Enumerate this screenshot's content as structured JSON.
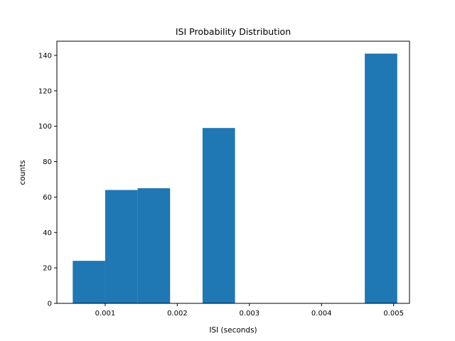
{
  "chart_data": {
    "type": "bar",
    "title": "ISI Probability Distribution",
    "xlabel": "ISI (seconds)",
    "ylabel": "counts",
    "xlim": [
      0.00033,
      0.00522
    ],
    "ylim": [
      0,
      148
    ],
    "xticks": [
      0.001,
      0.002,
      0.003,
      0.004,
      0.005
    ],
    "xtick_labels": [
      "0.001",
      "0.002",
      "0.003",
      "0.004",
      "0.005"
    ],
    "yticks": [
      0,
      20,
      40,
      60,
      80,
      100,
      120,
      140
    ],
    "ytick_labels": [
      "0",
      "20",
      "40",
      "60",
      "80",
      "100",
      "120",
      "140"
    ],
    "bins": [
      {
        "x0": 0.00055,
        "x1": 0.001,
        "value": 24
      },
      {
        "x0": 0.001,
        "x1": 0.00145,
        "value": 64
      },
      {
        "x0": 0.00145,
        "x1": 0.0019,
        "value": 65
      },
      {
        "x0": 0.0019,
        "x1": 0.00235,
        "value": 0
      },
      {
        "x0": 0.00235,
        "x1": 0.0028,
        "value": 99
      },
      {
        "x0": 0.0028,
        "x1": 0.00325,
        "value": 0
      },
      {
        "x0": 0.00325,
        "x1": 0.0037,
        "value": 0
      },
      {
        "x0": 0.0037,
        "x1": 0.00415,
        "value": 0
      },
      {
        "x0": 0.00415,
        "x1": 0.0046,
        "value": 0
      },
      {
        "x0": 0.0046,
        "x1": 0.00505,
        "value": 141
      }
    ],
    "bar_color": "#1f77b4",
    "grid": false,
    "legend": false
  }
}
